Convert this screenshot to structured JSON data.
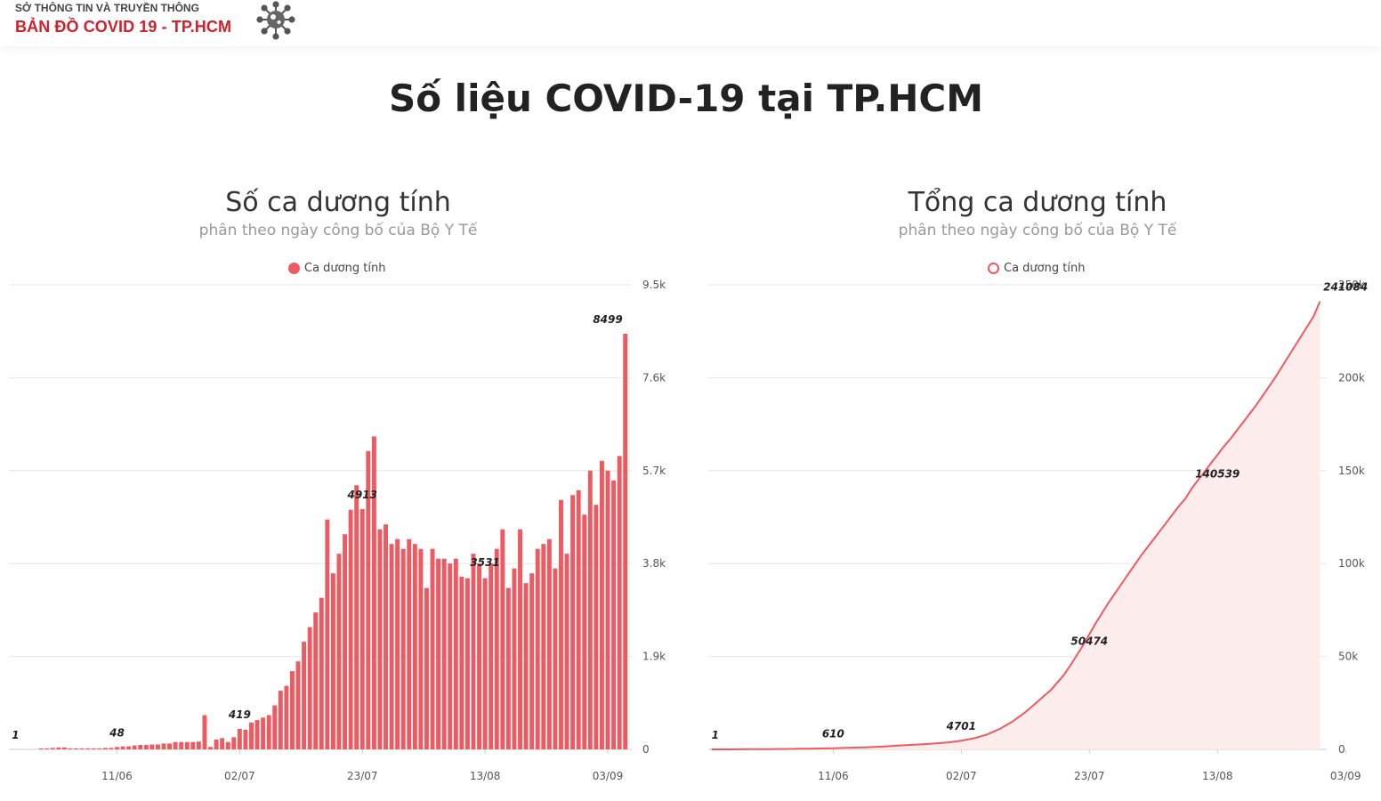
{
  "header": {
    "subtitle": "SỞ THÔNG TIN VÀ TRUYỀN THÔNG",
    "title": "BẢN ĐỒ  COVID 19 - TP.HCM",
    "logo_icon": "virus-icon"
  },
  "page_title": "Số liệu COVID-19 tại TP.HCM",
  "colors": {
    "accent": "#ee5a62",
    "brand_red": "#d0202a",
    "area_fill": "#fdecec"
  },
  "chart_data": [
    {
      "type": "bar",
      "title": "Số ca dương tính",
      "subtitle": "phân theo ngày công bố của Bộ Y Tế",
      "legend": [
        "Ca dương tính"
      ],
      "legend_position": "top-center",
      "grid": true,
      "y_axis_position": "right",
      "ylim": [
        0,
        9500
      ],
      "y_ticks": [
        "0",
        "1.9k",
        "3.8k",
        "5.7k",
        "7.6k",
        "9.5k"
      ],
      "x_tick_labels": [
        "11/06",
        "02/07",
        "23/07",
        "13/08",
        "03/09"
      ],
      "x_tick_indices": [
        18,
        39,
        60,
        81,
        102
      ],
      "series": [
        {
          "name": "Ca dương tính",
          "values": [
            1,
            0,
            0,
            0,
            0,
            20,
            20,
            30,
            40,
            40,
            20,
            20,
            20,
            20,
            20,
            20,
            30,
            30,
            48,
            60,
            60,
            80,
            90,
            90,
            100,
            100,
            120,
            120,
            150,
            150,
            150,
            150,
            160,
            700,
            50,
            200,
            230,
            150,
            250,
            419,
            400,
            550,
            600,
            650,
            700,
            900,
            1200,
            1300,
            1600,
            1800,
            2200,
            2500,
            2800,
            3100,
            4700,
            3600,
            4000,
            4400,
            4900,
            5400,
            4913,
            6100,
            6400,
            4500,
            4600,
            4200,
            4300,
            4100,
            4300,
            4200,
            4100,
            3300,
            4100,
            3900,
            3900,
            3800,
            3900,
            3531,
            3500,
            4000,
            3800,
            3500,
            3800,
            4100,
            4500,
            3300,
            3700,
            4500,
            3400,
            3600,
            4100,
            4200,
            4300,
            3700,
            5100,
            4000,
            5200,
            5300,
            4800,
            5700,
            5000,
            5900,
            5700,
            5500,
            6000,
            8499
          ]
        }
      ],
      "annotations": [
        {
          "x": "first",
          "y": 1,
          "label": "1"
        },
        {
          "x": "11/06",
          "y": 48,
          "label": "48"
        },
        {
          "x": "02/07",
          "y": 419,
          "label": "419"
        },
        {
          "x": "23/07",
          "y": 4913,
          "label": "4913"
        },
        {
          "x": "13/08",
          "y": 3531,
          "label": "3531"
        },
        {
          "x": "03/09",
          "y": 8499,
          "label": "8499"
        }
      ]
    },
    {
      "type": "area",
      "title": "Tổng ca dương tính",
      "subtitle": "phân theo ngày công bố của Bộ Y Tế",
      "legend": [
        "Ca dương tính"
      ],
      "legend_position": "top-center",
      "grid": true,
      "y_axis_position": "right",
      "ylim": [
        0,
        250000
      ],
      "y_ticks": [
        "0",
        "50k",
        "100k",
        "150k",
        "200k",
        "250k"
      ],
      "x_tick_labels": [
        "11/06",
        "02/07",
        "23/07",
        "13/08",
        "03/09"
      ],
      "x_tick_indices": [
        19,
        39,
        59,
        79,
        99
      ],
      "series": [
        {
          "name": "Ca dương tính",
          "values": [
            1,
            5,
            10,
            20,
            40,
            60,
            80,
            100,
            120,
            150,
            180,
            210,
            250,
            290,
            330,
            380,
            430,
            480,
            540,
            610,
            700,
            800,
            900,
            1000,
            1100,
            1250,
            1400,
            1600,
            1800,
            2000,
            2200,
            2400,
            2600,
            2800,
            3000,
            3200,
            3500,
            3800,
            4200,
            4701,
            5300,
            6000,
            7000,
            8000,
            9500,
            11000,
            13000,
            15000,
            17500,
            20000,
            23000,
            26000,
            29000,
            32000,
            36000,
            40000,
            45000,
            50474,
            56000,
            62000,
            68000,
            73500,
            79000,
            84000,
            89000,
            94000,
            99000,
            104000,
            108500,
            113000,
            117500,
            122000,
            126500,
            131000,
            135000,
            140539,
            145000,
            149500,
            154000,
            158500,
            163000,
            167000,
            171500,
            176000,
            180500,
            185000,
            190000,
            195000,
            200000,
            205500,
            211000,
            216500,
            222000,
            227500,
            233000,
            241084
          ]
        }
      ],
      "annotations": [
        {
          "x": "first",
          "y": 1,
          "label": "1"
        },
        {
          "x": "11/06",
          "y": 610,
          "label": "610"
        },
        {
          "x": "02/07",
          "y": 4701,
          "label": "4701"
        },
        {
          "x": "23/07",
          "y": 50474,
          "label": "50474"
        },
        {
          "x": "13/08",
          "y": 140539,
          "label": "140539"
        },
        {
          "x": "03/09",
          "y": 241084,
          "label": "241084"
        }
      ]
    }
  ]
}
